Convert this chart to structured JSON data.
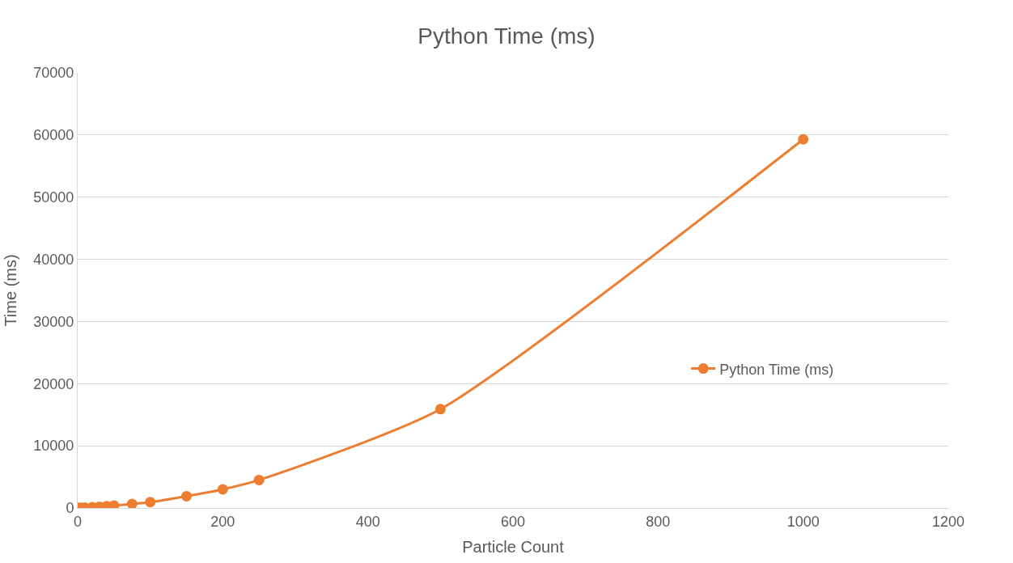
{
  "chart_data": {
    "type": "line",
    "title": "Python Time (ms)",
    "xlabel": "Particle Count",
    "ylabel": "Time (ms)",
    "series": [
      {
        "name": "Python Time (ms)",
        "color": "#ed7d31",
        "x": [
          1,
          2,
          5,
          10,
          20,
          30,
          40,
          50,
          75,
          100,
          150,
          200,
          250,
          500,
          1000
        ],
        "values": [
          5,
          10,
          30,
          60,
          120,
          200,
          300,
          400,
          650,
          950,
          1900,
          3000,
          4500,
          15900,
          59300
        ]
      }
    ],
    "xlim": [
      0,
      1200
    ],
    "xticks": [
      0,
      200,
      400,
      600,
      800,
      1000,
      1200
    ],
    "ylim": [
      0,
      70000
    ],
    "yticks": [
      0,
      10000,
      20000,
      30000,
      40000,
      50000,
      60000,
      70000
    ],
    "grid": "y",
    "legend": "right",
    "marker": "circle",
    "line_style": "solid"
  }
}
